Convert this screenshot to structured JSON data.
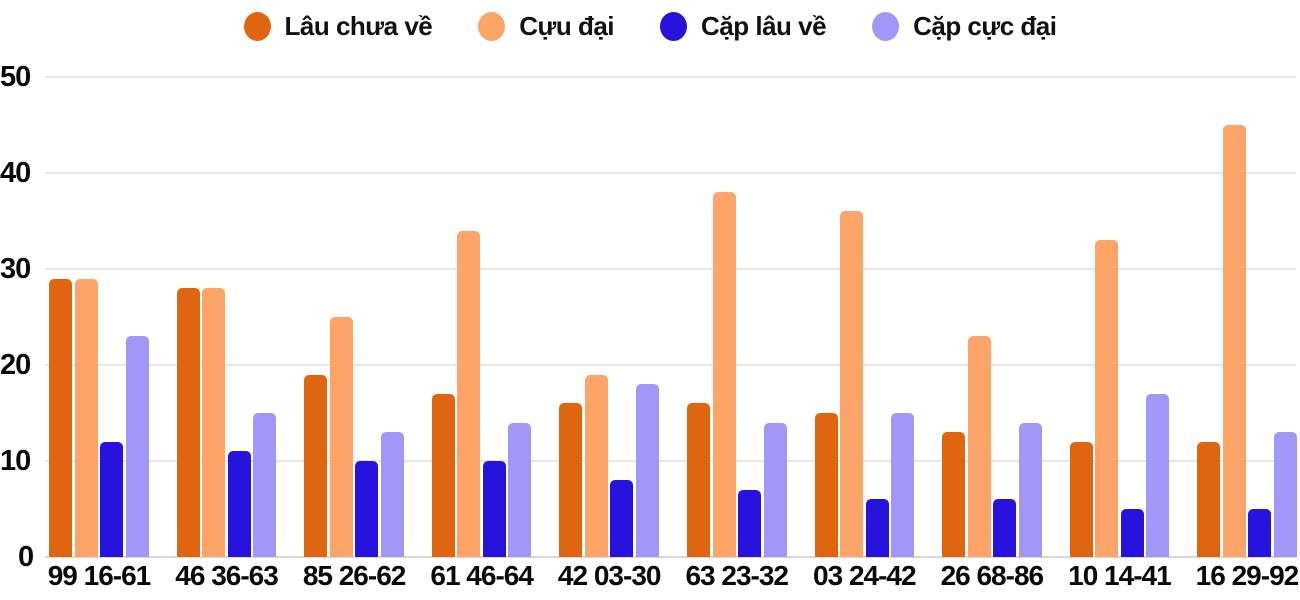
{
  "chart_data": {
    "type": "bar",
    "title": "",
    "xlabel": "",
    "ylabel": "",
    "categories": [
      "99 16-61",
      "46 36-63",
      "85 26-62",
      "61 46-64",
      "42 03-30",
      "63 23-32",
      "03 24-42",
      "26 68-86",
      "10 14-41",
      "16 29-92"
    ],
    "series": [
      {
        "name": "Lâu chưa về",
        "color": "#e06511",
        "values": [
          29,
          28,
          19,
          17,
          16,
          16,
          15,
          13,
          12,
          12
        ]
      },
      {
        "name": "Cựu đại",
        "color": "#fda468",
        "values": [
          29,
          28,
          25,
          34,
          19,
          38,
          36,
          23,
          33,
          45
        ]
      },
      {
        "name": "Cặp lâu về",
        "color": "#2713de",
        "values": [
          12,
          11,
          10,
          10,
          8,
          7,
          6,
          6,
          5,
          5
        ]
      },
      {
        "name": "Cặp cực đại",
        "color": "#a197f7",
        "values": [
          23,
          15,
          13,
          14,
          18,
          14,
          15,
          14,
          17,
          13
        ]
      }
    ],
    "y_ticks": [
      0,
      10,
      20,
      30,
      40,
      50
    ],
    "ylim": [
      0,
      50
    ],
    "grid": true,
    "legend_position": "top",
    "colors": {
      "gridline": "#e7e7e7",
      "baseline": "#d8d8d8",
      "text": "#0a0a0a",
      "background": "#ffffff"
    }
  }
}
